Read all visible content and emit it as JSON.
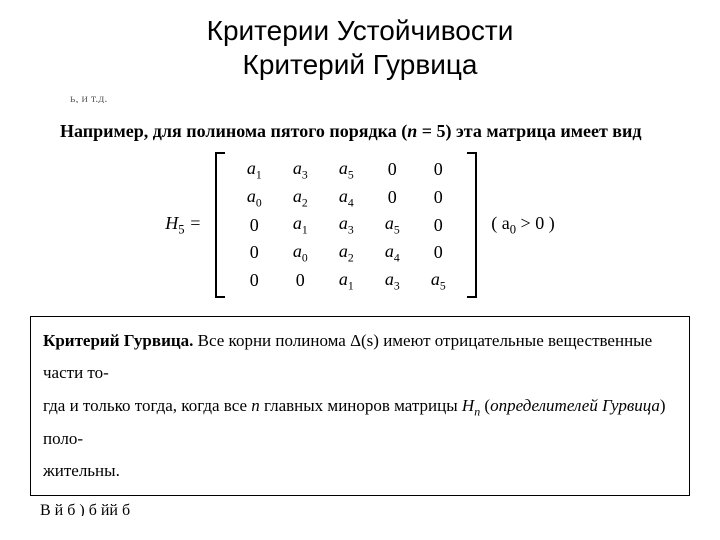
{
  "title_line1": "Критерии Устойчивости",
  "title_line2": "Критерий Гурвица",
  "cutoff_top": "ь, и т.д.",
  "lead": {
    "pre": "Например, для полинома пятого порядка (",
    "var": "n",
    "eq": " = 5",
    "post": ") эта матрица имеет вид"
  },
  "equation": {
    "left_html": "H<sub>5</sub> =",
    "matrix": [
      [
        "a<sub>1</sub>",
        "a<sub>3</sub>",
        "a<sub>5</sub>",
        "0",
        "0"
      ],
      [
        "a<sub>0</sub>",
        "a<sub>2</sub>",
        "a<sub>4</sub>",
        "0",
        "0"
      ],
      [
        "0",
        "a<sub>1</sub>",
        "a<sub>3</sub>",
        "a<sub>5</sub>",
        "0"
      ],
      [
        "0",
        "a<sub>0</sub>",
        "a<sub>2</sub>",
        "a<sub>4</sub>",
        "0"
      ],
      [
        "0",
        "0",
        "a<sub>1</sub>",
        "a<sub>3</sub>",
        "a<sub>5</sub>"
      ]
    ],
    "condition_html": "( <span class=\"it\">a</span><sub>0</sub> &gt; 0 )"
  },
  "box": {
    "label": "Критерий Гурвица.",
    "t1": " Все корни полинома ",
    "delta": "Δ(s)",
    "t2": " имеют отрицательные вещественные части то-",
    "t3": "гда и только тогда, когда все ",
    "nvar": "n",
    "t4": " главных миноров матрицы ",
    "Hn": "H<sub>n</sub>",
    "t5": " (",
    "italics": "определителей Гурвица",
    "t6": ") поло-",
    "t7": "жительны."
  },
  "cutoff_bottom": "В                                             й                                       б   )           б                       йй              б"
}
